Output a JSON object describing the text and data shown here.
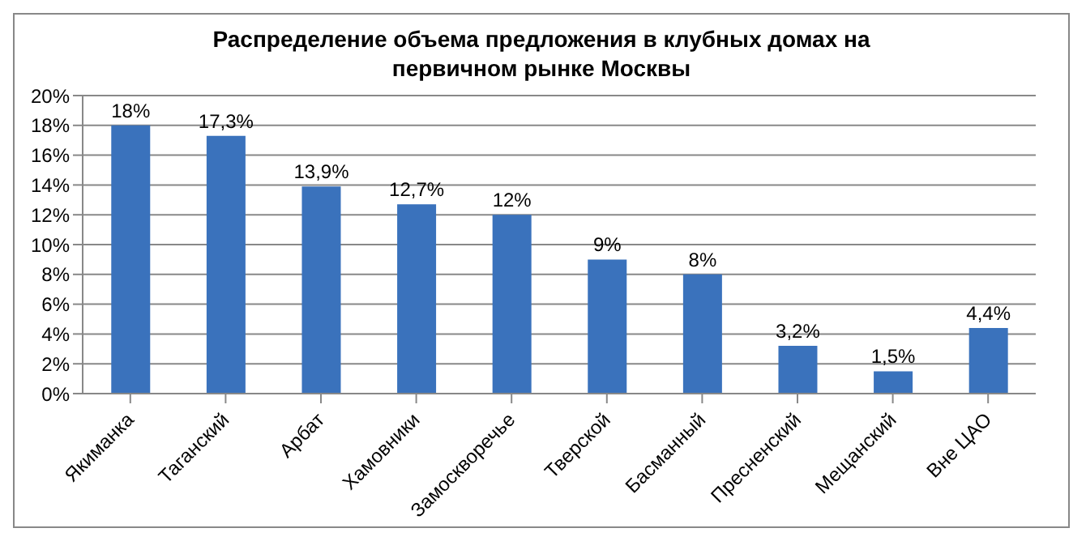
{
  "chart_data": {
    "type": "bar",
    "title": "Распределение объема предложения в клубных домах на первичном рынке Москвы",
    "categories": [
      "Якиманка",
      "Таганский",
      "Арбат",
      "Хамовники",
      "Замоскворечье",
      "Тверской",
      "Басманный",
      "Пресненский",
      "Мещанский",
      "Вне ЦАО"
    ],
    "values": [
      18,
      17.3,
      13.9,
      12.7,
      12,
      9,
      8,
      3.2,
      1.5,
      4.4
    ],
    "value_labels": [
      "18%",
      "17,3%",
      "13,9%",
      "12,7%",
      "12%",
      "9%",
      "8%",
      "3,2%",
      "1,5%",
      "4,4%"
    ],
    "color": "#3a72bc",
    "ylim": [
      0,
      20
    ],
    "yticks": [
      {
        "value": 0,
        "label": "0%"
      },
      {
        "value": 2,
        "label": "2%"
      },
      {
        "value": 4,
        "label": "4%"
      },
      {
        "value": 6,
        "label": "6%"
      },
      {
        "value": 8,
        "label": "8%"
      },
      {
        "value": 10,
        "label": "10%"
      },
      {
        "value": 12,
        "label": "12%"
      },
      {
        "value": 14,
        "label": "14%"
      },
      {
        "value": 16,
        "label": "16%"
      },
      {
        "value": 18,
        "label": "18%"
      },
      {
        "value": 20,
        "label": "20%"
      }
    ],
    "grid": "y"
  }
}
